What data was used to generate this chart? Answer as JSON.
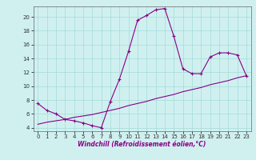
{
  "title": "",
  "xlabel": "Windchill (Refroidissement éolien,°C)",
  "line1_x": [
    0,
    1,
    2,
    3,
    4,
    5,
    6,
    7,
    8,
    9,
    10,
    11,
    12,
    13,
    14,
    15,
    16,
    17,
    18,
    19,
    20,
    21,
    22,
    23
  ],
  "line1_y": [
    7.5,
    6.5,
    6.0,
    5.2,
    5.0,
    4.7,
    4.3,
    4.0,
    7.8,
    11.0,
    15.0,
    19.5,
    20.2,
    21.0,
    21.2,
    17.2,
    12.5,
    11.8,
    11.8,
    14.2,
    14.8,
    14.8,
    14.5,
    11.5
  ],
  "line2_x": [
    0,
    1,
    2,
    3,
    4,
    5,
    6,
    7,
    8,
    9,
    10,
    11,
    12,
    13,
    14,
    15,
    16,
    17,
    18,
    19,
    20,
    21,
    22,
    23
  ],
  "line2_y": [
    4.5,
    4.8,
    5.0,
    5.2,
    5.5,
    5.7,
    5.9,
    6.2,
    6.5,
    6.8,
    7.2,
    7.5,
    7.8,
    8.2,
    8.5,
    8.8,
    9.2,
    9.5,
    9.8,
    10.2,
    10.5,
    10.8,
    11.2,
    11.5
  ],
  "line_color": "#880088",
  "bg_color": "#d0f0f0",
  "grid_color": "#aadddd",
  "ylim": [
    3.5,
    21.5
  ],
  "xlim": [
    -0.5,
    23.5
  ],
  "yticks": [
    4,
    6,
    8,
    10,
    12,
    14,
    16,
    18,
    20
  ],
  "xticks": [
    0,
    1,
    2,
    3,
    4,
    5,
    6,
    7,
    8,
    9,
    10,
    11,
    12,
    13,
    14,
    15,
    16,
    17,
    18,
    19,
    20,
    21,
    22,
    23
  ],
  "marker": "+",
  "tick_fontsize": 5.0,
  "xlabel_fontsize": 5.5,
  "linewidth": 0.8,
  "markersize": 3.5
}
